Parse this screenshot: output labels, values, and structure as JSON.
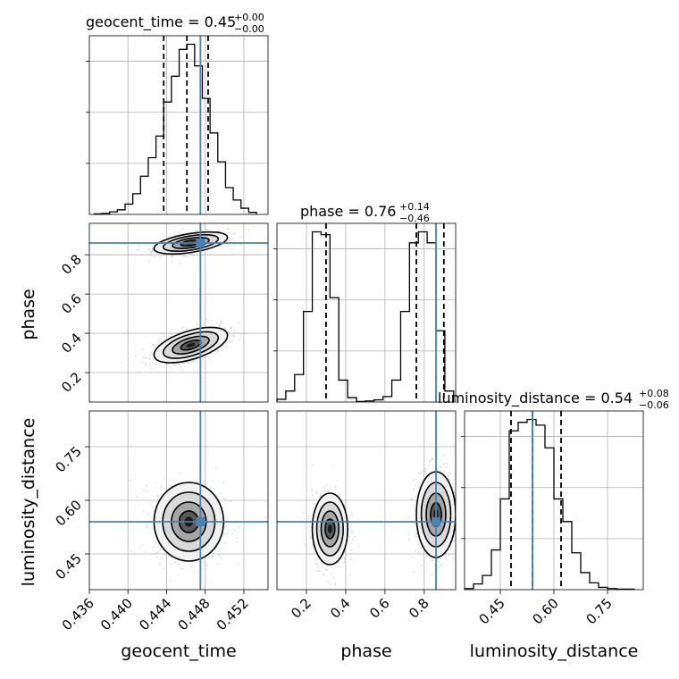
{
  "chart_data": {
    "type": "corner",
    "parameters": [
      "geocent_time",
      "phase",
      "luminosity_distance"
    ],
    "axis_labels": [
      "geocent_time",
      "phase",
      "luminosity_distance"
    ],
    "truths": {
      "geocent_time": 0.4475,
      "phase": 0.86,
      "luminosity_distance": 0.54
    },
    "truth_color": "#4682b4",
    "ranges": {
      "geocent_time": [
        0.436,
        0.4545
      ],
      "phase": [
        0.05,
        0.96
      ],
      "luminosity_distance": [
        0.35,
        0.85
      ]
    },
    "ticks": {
      "geocent_time": [
        "0.436",
        "0.440",
        "0.444",
        "0.448",
        "0.452"
      ],
      "phase": [
        "0.2",
        "0.4",
        "0.6",
        "0.8"
      ],
      "luminosity_distance": [
        "0.45",
        "0.60",
        "0.75"
      ]
    },
    "titles": [
      {
        "name": "geocent_time",
        "median": "0.45",
        "plus": "+0.00",
        "minus": "−0.00"
      },
      {
        "name": "phase",
        "median": "0.76",
        "plus": "+0.14",
        "minus": "−0.46"
      },
      {
        "name": "luminosity_distance",
        "median": "0.54",
        "plus": "+0.08",
        "minus": "−0.06"
      }
    ],
    "quantiles": {
      "geocent_time": [
        0.4437,
        0.4461,
        0.4483
      ],
      "phase": [
        0.3,
        0.76,
        0.9
      ],
      "luminosity_distance": [
        0.48,
        0.54,
        0.62
      ]
    },
    "histograms": {
      "geocent_time": {
        "edges": [
          0.4365,
          0.4373,
          0.4381,
          0.4389,
          0.4397,
          0.4405,
          0.4413,
          0.4421,
          0.4429,
          0.4437,
          0.4445,
          0.4453,
          0.4461,
          0.4469,
          0.4477,
          0.4485,
          0.4493,
          0.4501,
          0.4509,
          0.4517,
          0.4525,
          0.4533
        ],
        "counts": [
          1,
          2,
          5,
          9,
          20,
          40,
          74,
          110,
          152,
          218,
          268,
          320,
          330,
          288,
          225,
          158,
          102,
          52,
          28,
          12,
          4
        ]
      },
      "phase": {
        "edges": [
          0.05,
          0.095,
          0.14,
          0.185,
          0.23,
          0.275,
          0.32,
          0.365,
          0.41,
          0.455,
          0.5,
          0.545,
          0.59,
          0.635,
          0.68,
          0.725,
          0.77,
          0.815,
          0.86,
          0.905,
          0.95
        ],
        "counts": [
          5,
          20,
          50,
          165,
          310,
          305,
          190,
          40,
          8,
          1,
          2,
          4,
          10,
          40,
          165,
          290,
          310,
          290,
          130,
          20
        ]
      },
      "luminosity_distance": {
        "edges": [
          0.35,
          0.375,
          0.4,
          0.425,
          0.45,
          0.475,
          0.5,
          0.525,
          0.55,
          0.575,
          0.6,
          0.625,
          0.65,
          0.675,
          0.7,
          0.725,
          0.75,
          0.775,
          0.8,
          0.825
        ],
        "counts": [
          2,
          10,
          25,
          70,
          160,
          280,
          295,
          300,
          290,
          250,
          160,
          120,
          65,
          30,
          12,
          4,
          2,
          1,
          1
        ]
      }
    },
    "blobs_2d": [
      {
        "x": "geocent_time",
        "y": "phase",
        "clusters": [
          {
            "cx": 0.4465,
            "cy": 0.86,
            "sx": 0.0019,
            "sy": 0.028,
            "rho": 0.5
          },
          {
            "cx": 0.4465,
            "cy": 0.34,
            "sx": 0.0019,
            "sy": 0.045,
            "rho": 0.55
          }
        ]
      },
      {
        "x": "geocent_time",
        "y": "luminosity_distance",
        "clusters": [
          {
            "cx": 0.4463,
            "cy": 0.54,
            "sx": 0.0018,
            "sy": 0.055,
            "rho": 0.0
          }
        ]
      },
      {
        "x": "phase",
        "y": "luminosity_distance",
        "clusters": [
          {
            "cx": 0.32,
            "cy": 0.52,
            "sx": 0.045,
            "sy": 0.05,
            "rho": 0.0
          },
          {
            "cx": 0.86,
            "cy": 0.56,
            "sx": 0.05,
            "sy": 0.06,
            "rho": 0.0
          }
        ]
      }
    ],
    "grid": true,
    "histogram_style": "step",
    "contour_color": "#000000"
  }
}
